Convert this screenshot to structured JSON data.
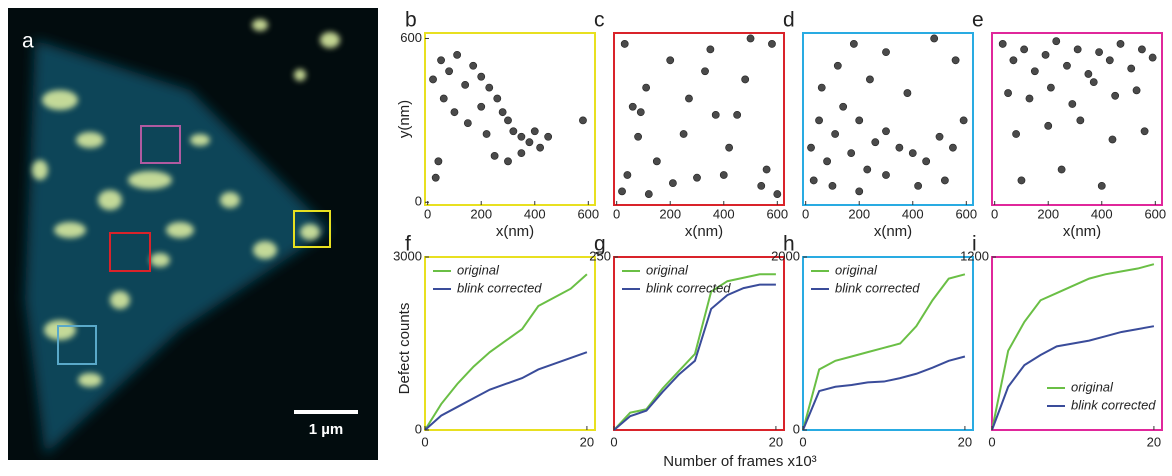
{
  "figure": {
    "xlabel": "Number of frames x10³"
  },
  "chart_data": [
    {
      "type": "image",
      "panel": "a",
      "scale_bar": "1 µm"
    },
    {
      "type": "scatter",
      "panel": "b",
      "frame_color": "#e8e020",
      "point_color": "#4a4a4a",
      "xlabel": "x(nm)",
      "ylabel": "y(nm)",
      "xlim": [
        -10,
        625
      ],
      "ylim": [
        -10,
        620
      ],
      "xticks": [
        0,
        200,
        400,
        600
      ],
      "yticks": [
        0,
        600
      ],
      "x": [
        20,
        50,
        80,
        60,
        110,
        140,
        170,
        200,
        230,
        260,
        280,
        300,
        320,
        350,
        380,
        400,
        420,
        250,
        300,
        200,
        150,
        100,
        40,
        30,
        450,
        580,
        350,
        220
      ],
      "y": [
        450,
        520,
        480,
        380,
        540,
        430,
        500,
        460,
        420,
        380,
        330,
        300,
        260,
        240,
        220,
        260,
        200,
        170,
        150,
        350,
        290,
        330,
        150,
        90,
        240,
        300,
        180,
        250
      ]
    },
    {
      "type": "scatter",
      "panel": "c",
      "frame_color": "#d9232a",
      "point_color": "#4a4a4a",
      "xlabel": "x(nm)",
      "xlim": [
        -10,
        625
      ],
      "ylim": [
        -10,
        620
      ],
      "xticks": [
        0,
        200,
        400,
        600
      ],
      "x": [
        30,
        60,
        90,
        110,
        150,
        200,
        250,
        300,
        350,
        400,
        450,
        500,
        540,
        580,
        40,
        120,
        210,
        330,
        420,
        560,
        480,
        80,
        270,
        600,
        20,
        370
      ],
      "y": [
        580,
        350,
        330,
        420,
        150,
        520,
        250,
        90,
        560,
        100,
        320,
        600,
        60,
        580,
        100,
        30,
        70,
        480,
        200,
        120,
        450,
        240,
        380,
        30,
        40,
        320
      ]
    },
    {
      "type": "scatter",
      "panel": "d",
      "frame_color": "#29abe2",
      "point_color": "#4a4a4a",
      "xlabel": "x(nm)",
      "xlim": [
        -10,
        625
      ],
      "ylim": [
        -10,
        620
      ],
      "xticks": [
        0,
        200,
        400,
        600
      ],
      "x": [
        20,
        50,
        80,
        110,
        140,
        170,
        200,
        230,
        260,
        300,
        350,
        400,
        450,
        500,
        550,
        590,
        60,
        120,
        180,
        240,
        300,
        380,
        480,
        560,
        30,
        100,
        200,
        300,
        420,
        520
      ],
      "y": [
        200,
        300,
        150,
        250,
        350,
        180,
        300,
        120,
        220,
        260,
        200,
        180,
        150,
        240,
        200,
        300,
        420,
        500,
        580,
        450,
        550,
        400,
        600,
        520,
        80,
        60,
        40,
        100,
        60,
        80
      ]
    },
    {
      "type": "scatter",
      "panel": "e",
      "frame_color": "#e0279b",
      "point_color": "#4a4a4a",
      "xlabel": "x(nm)",
      "xlim": [
        -10,
        625
      ],
      "ylim": [
        -10,
        620
      ],
      "xticks": [
        0,
        200,
        400,
        600
      ],
      "x": [
        30,
        70,
        110,
        150,
        190,
        230,
        270,
        310,
        350,
        390,
        430,
        470,
        510,
        550,
        590,
        50,
        130,
        210,
        290,
        370,
        450,
        530,
        80,
        200,
        320,
        440,
        560,
        100,
        250,
        400
      ],
      "y": [
        580,
        520,
        560,
        480,
        540,
        590,
        500,
        560,
        470,
        550,
        520,
        580,
        490,
        560,
        530,
        400,
        380,
        420,
        360,
        440,
        390,
        410,
        250,
        280,
        300,
        230,
        260,
        80,
        120,
        60
      ]
    },
    {
      "type": "line",
      "panel": "f",
      "frame_color": "#e8e020",
      "ylabel": "Defect counts",
      "legend": "upper left",
      "xlim": [
        0,
        21
      ],
      "ylim": [
        0,
        3000
      ],
      "xticks": [
        0,
        20
      ],
      "yticks": [
        0,
        3000
      ],
      "x": [
        0,
        2,
        4,
        6,
        8,
        10,
        12,
        14,
        16,
        18,
        20
      ],
      "series": [
        {
          "name": "original",
          "color": "#6abf45",
          "values": [
            0,
            450,
            800,
            1100,
            1350,
            1550,
            1750,
            2150,
            2300,
            2450,
            2700
          ]
        },
        {
          "name": "blink corrected",
          "color": "#3a4c9a",
          "values": [
            0,
            250,
            400,
            550,
            700,
            800,
            900,
            1050,
            1150,
            1250,
            1350
          ]
        }
      ]
    },
    {
      "type": "line",
      "panel": "g",
      "frame_color": "#d9232a",
      "legend": "upper left",
      "xlim": [
        0,
        21
      ],
      "ylim": [
        0,
        250
      ],
      "xticks": [
        0,
        20
      ],
      "yticks": [
        250
      ],
      "x": [
        0,
        2,
        4,
        6,
        8,
        10,
        12,
        14,
        16,
        18,
        20
      ],
      "series": [
        {
          "name": "original",
          "color": "#6abf45",
          "values": [
            0,
            25,
            30,
            60,
            85,
            110,
            200,
            215,
            220,
            225,
            225
          ]
        },
        {
          "name": "blink corrected",
          "color": "#3a4c9a",
          "values": [
            0,
            20,
            28,
            55,
            80,
            100,
            175,
            195,
            205,
            210,
            210
          ]
        }
      ]
    },
    {
      "type": "line",
      "panel": "h",
      "frame_color": "#29abe2",
      "legend": "upper left",
      "xlim": [
        0,
        21
      ],
      "ylim": [
        0,
        2000
      ],
      "xticks": [
        0,
        20
      ],
      "yticks": [
        0,
        2000
      ],
      "x": [
        0,
        2,
        4,
        6,
        8,
        10,
        12,
        14,
        16,
        18,
        20
      ],
      "series": [
        {
          "name": "original",
          "color": "#6abf45",
          "values": [
            0,
            700,
            800,
            850,
            900,
            950,
            1000,
            1200,
            1500,
            1750,
            1800
          ]
        },
        {
          "name": "blink corrected",
          "color": "#3a4c9a",
          "values": [
            0,
            450,
            500,
            520,
            550,
            560,
            600,
            650,
            720,
            800,
            850
          ]
        }
      ]
    },
    {
      "type": "line",
      "panel": "i",
      "frame_color": "#e0279b",
      "legend": "lower right",
      "xlim": [
        0,
        21
      ],
      "ylim": [
        0,
        1200
      ],
      "xticks": [
        0,
        20
      ],
      "yticks": [
        1200
      ],
      "x": [
        0,
        2,
        4,
        6,
        8,
        10,
        12,
        14,
        16,
        18,
        20
      ],
      "series": [
        {
          "name": "original",
          "color": "#6abf45",
          "values": [
            0,
            550,
            750,
            900,
            950,
            1000,
            1050,
            1080,
            1100,
            1120,
            1150
          ]
        },
        {
          "name": "blink corrected",
          "color": "#3a4c9a",
          "values": [
            0,
            300,
            450,
            520,
            580,
            600,
            620,
            650,
            680,
            700,
            720
          ]
        }
      ]
    }
  ]
}
